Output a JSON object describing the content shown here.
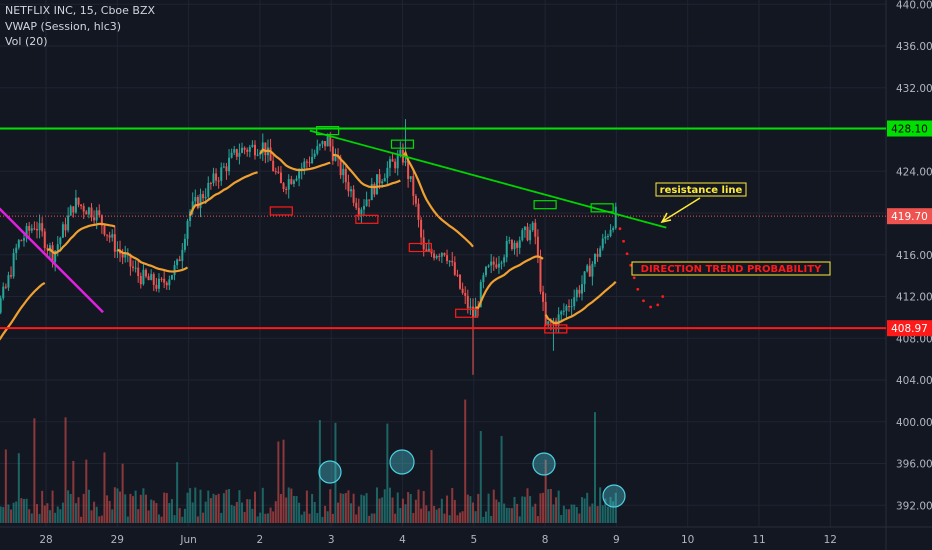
{
  "legend": {
    "symbol_line": "NETFLIX INC, 15, Cboe BZX",
    "vwap_line": "VWAP (Session, hlc3)",
    "vol_line": "Vol (20)"
  },
  "colors": {
    "background": "#131722",
    "grid": "#1f2433",
    "axis_text": "#b2b5be",
    "up_candle": "#26a69a",
    "down_candle": "#ef5350",
    "vwap": "#f0a030",
    "resistance": "#00e000",
    "support": "#ff1a1a",
    "trendline": "#00d400",
    "downtrend": "#e020e0",
    "annotation_yellow": "#ffeb3b",
    "volume_circle": "#4dd0e1"
  },
  "chart_data": {
    "type": "candlestick",
    "ylim": [
      389.5,
      440.5
    ],
    "x_ticks": [
      "28",
      "29",
      "Jun",
      "2",
      "3",
      "4",
      "5",
      "8",
      "9",
      "10",
      "11",
      "12"
    ],
    "y_ticks": [
      "440.00",
      "436.00",
      "432.00",
      "428.00",
      "424.00",
      "420.00",
      "416.00",
      "412.00",
      "408.00",
      "404.00",
      "400.00",
      "396.00",
      "392.00"
    ],
    "horizontal_levels": [
      {
        "name": "resistance",
        "value": 428.1,
        "label": "428.10"
      },
      {
        "name": "last-price",
        "value": 419.7,
        "label": "419.70"
      },
      {
        "name": "support",
        "value": 408.97,
        "label": "408.97"
      }
    ],
    "annotations": {
      "resistance_label": "resistance line",
      "trend_label": "DIRECTION TREND PROBABILITY"
    },
    "session_anchors": [
      {
        "date": "27",
        "price": 405.5
      },
      {
        "date": "27.45",
        "price": 413
      },
      {
        "date": "27.6",
        "price": 417
      },
      {
        "date": "27.85",
        "price": 419
      },
      {
        "date": "28.1",
        "price": 416
      },
      {
        "date": "28.4",
        "price": 421
      },
      {
        "date": "28.7",
        "price": 420
      },
      {
        "date": "29",
        "price": 416.5
      },
      {
        "date": "29.3",
        "price": 414
      },
      {
        "date": "29.6",
        "price": 413
      },
      {
        "date": "29.85",
        "price": 415
      },
      {
        "date": "30",
        "price": 420
      },
      {
        "date": "30.4",
        "price": 423.5
      },
      {
        "date": "30.7",
        "price": 426
      },
      {
        "date": "31.05",
        "price": 426.5
      },
      {
        "date": "31.3",
        "price": 422.5
      },
      {
        "date": "31.6",
        "price": 424.5
      },
      {
        "date": "31.95",
        "price": 427
      },
      {
        "date": "32.1",
        "price": 424.5
      },
      {
        "date": "32.4",
        "price": 420.5
      },
      {
        "date": "32.75",
        "price": 424
      },
      {
        "date": "33",
        "price": 425.5
      },
      {
        "date": "33.15",
        "price": 422
      },
      {
        "date": "33.3",
        "price": 416
      },
      {
        "date": "33.6",
        "price": 416.5
      },
      {
        "date": "33.85",
        "price": 412
      },
      {
        "date": "34",
        "price": 410
      },
      {
        "date": "34.15",
        "price": 414
      },
      {
        "date": "34.5",
        "price": 417
      },
      {
        "date": "34.85",
        "price": 418.5
      },
      {
        "date": "35",
        "price": 409
      },
      {
        "date": "35.2",
        "price": 410
      },
      {
        "date": "35.5",
        "price": 413
      },
      {
        "date": "35.8",
        "price": 417
      },
      {
        "date": "36",
        "price": 420
      }
    ]
  }
}
